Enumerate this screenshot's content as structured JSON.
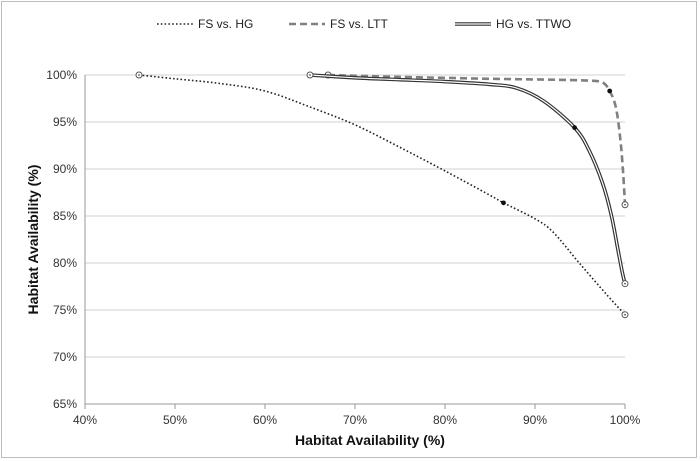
{
  "chart_data": {
    "type": "line",
    "title": "",
    "xlabel": "Habitat Availability (%)",
    "ylabel": "Habitat Availability (%)",
    "xlim": [
      40,
      100
    ],
    "ylim": [
      65,
      100
    ],
    "x_ticks": [
      "40%",
      "50%",
      "60%",
      "70%",
      "80%",
      "90%",
      "100%"
    ],
    "y_ticks": [
      "65%",
      "70%",
      "75%",
      "80%",
      "85%",
      "90%",
      "95%",
      "100%"
    ],
    "grid": "horizontal",
    "legend_position": "top",
    "series": [
      {
        "name": "FS vs. HG",
        "style": "dotted",
        "color": "#222222",
        "x": [
          46,
          50,
          55,
          60,
          65,
          70,
          75,
          80,
          85,
          86.5,
          90,
          92,
          95,
          98,
          100
        ],
        "y": [
          100,
          99.6,
          99.1,
          98.3,
          96.6,
          94.7,
          92.3,
          89.8,
          87.2,
          86.4,
          84.7,
          83.3,
          79.9,
          76.6,
          74.5
        ],
        "markers": [
          {
            "x": 46,
            "y": 100,
            "style": "open"
          },
          {
            "x": 86.5,
            "y": 86.4,
            "style": "filled"
          },
          {
            "x": 100,
            "y": 74.5,
            "style": "open"
          }
        ]
      },
      {
        "name": "FS vs. LTT",
        "style": "dashed",
        "color": "#808080",
        "x": [
          67,
          75,
          85,
          92,
          96,
          97.5,
          98.3,
          99,
          99.5,
          99.8,
          100
        ],
        "y": [
          100,
          99.8,
          99.6,
          99.5,
          99.4,
          99.2,
          98.3,
          96.5,
          93,
          89.5,
          86.2
        ],
        "markers": [
          {
            "x": 67,
            "y": 100,
            "style": "open"
          },
          {
            "x": 98.3,
            "y": 98.3,
            "style": "filled"
          },
          {
            "x": 100,
            "y": 86.2,
            "style": "open"
          }
        ]
      },
      {
        "name": "HG vs. TTWO",
        "style": "double",
        "color": "#333333",
        "x": [
          65,
          70,
          75,
          80,
          85,
          88,
          91,
          94.4,
          96,
          97.5,
          98.5,
          99.2,
          99.7,
          100
        ],
        "y": [
          100,
          99.7,
          99.5,
          99.3,
          99,
          98.6,
          97.2,
          94.4,
          92,
          88.5,
          85,
          81.5,
          79,
          77.8
        ],
        "markers": [
          {
            "x": 65,
            "y": 100,
            "style": "open"
          },
          {
            "x": 94.4,
            "y": 94.4,
            "style": "filled"
          },
          {
            "x": 100,
            "y": 77.8,
            "style": "open"
          }
        ]
      }
    ]
  }
}
